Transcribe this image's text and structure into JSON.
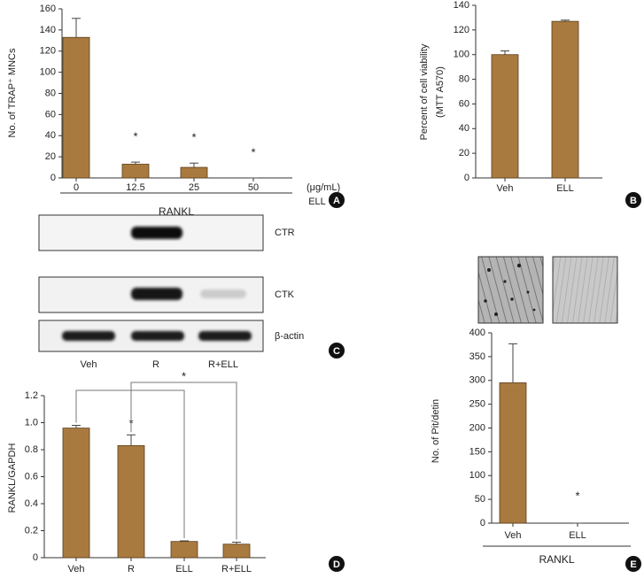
{
  "chart_data": [
    {
      "type": "bar",
      "panel": "A",
      "y_label": [
        "No. of TRAP⁺ MNCs"
      ],
      "categories": [
        "0",
        "12.5",
        "25",
        "50"
      ],
      "values": [
        133,
        13,
        10,
        0
      ],
      "errors": [
        18,
        2,
        4,
        0
      ],
      "color": "#a97a3f",
      "ylim": [
        0,
        160
      ],
      "yticks": [
        0,
        20,
        40,
        60,
        80,
        100,
        120,
        140,
        160
      ],
      "x_unit": "(μg/mL)",
      "x_label": "ELL",
      "group_label": "RANKL",
      "annotations": [
        {
          "text": "*",
          "category": "12.5"
        },
        {
          "text": "*",
          "category": "25"
        },
        {
          "text": "*",
          "category": "50"
        }
      ]
    },
    {
      "type": "bar",
      "panel": "B",
      "y_label": [
        "Percent of cell viability",
        "(MTT A570)"
      ],
      "categories": [
        "Veh",
        "ELL"
      ],
      "values": [
        100,
        127
      ],
      "errors": [
        3,
        1
      ],
      "color": "#a97a3f",
      "ylim": [
        0,
        140
      ],
      "yticks": [
        0,
        20,
        40,
        60,
        80,
        100,
        120,
        140
      ]
    },
    {
      "type": "blot",
      "panel": "C",
      "row_labels": [
        "CTR",
        "CTK",
        "β-actin"
      ],
      "categories": [
        "Veh",
        "R",
        "R+ELL"
      ]
    },
    {
      "type": "bar",
      "panel": "D",
      "y_label": [
        "RANKL/GAPDH"
      ],
      "categories": [
        "Veh",
        "R",
        "ELL",
        "R+ELL"
      ],
      "values": [
        0.96,
        0.83,
        0.12,
        0.1
      ],
      "errors": [
        0.02,
        0.08,
        0.005,
        0.015
      ],
      "color": "#a97a3f",
      "ylim": [
        0,
        1.2
      ],
      "yticks": [
        0,
        0.2,
        0.4,
        0.6,
        0.8,
        {
          "value": 1,
          "label": "1.0"
        },
        1.2
      ],
      "annotations": [
        {
          "text": "*",
          "category": "R"
        }
      ],
      "brackets": [
        {
          "from": "Veh",
          "to": "ELL"
        },
        {
          "from": "R",
          "to": "R+ELL",
          "text": "*"
        }
      ]
    },
    {
      "type": "bar",
      "panel": "E",
      "y_label": [
        "No. of Pit/detin"
      ],
      "categories": [
        "Veh",
        "ELL"
      ],
      "values": [
        295,
        0
      ],
      "errors": [
        82,
        0
      ],
      "color": "#a97a3f",
      "ylim": [
        0,
        400
      ],
      "yticks": [
        0,
        50,
        100,
        150,
        200,
        250,
        300,
        350,
        400
      ],
      "group_label": "RANKL",
      "annotations": [
        {
          "text": "*",
          "category": "ELL"
        }
      ]
    }
  ]
}
